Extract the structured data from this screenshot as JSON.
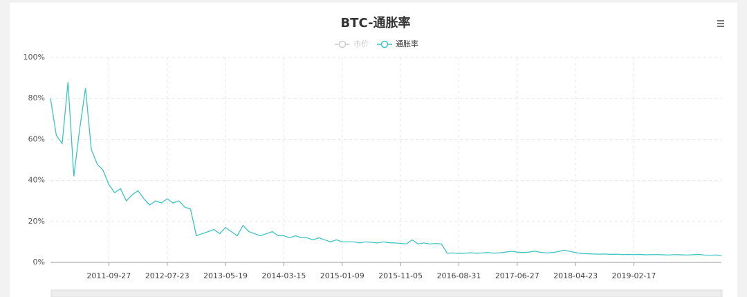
{
  "chart_data": {
    "type": "line",
    "title": "BTC-通胀率",
    "legend": [
      {
        "name": "市价",
        "active": false
      },
      {
        "name": "通胀率",
        "active": true
      }
    ],
    "categories": [
      null,
      null,
      null,
      null,
      null,
      null,
      null,
      null,
      null,
      null,
      "2011-09-27",
      null,
      null,
      null,
      null,
      null,
      null,
      null,
      null,
      null,
      "2012-07-23",
      null,
      null,
      null,
      null,
      null,
      null,
      null,
      null,
      null,
      "2013-05-19",
      null,
      null,
      null,
      null,
      null,
      null,
      null,
      null,
      null,
      "2014-03-15",
      null,
      null,
      null,
      null,
      null,
      null,
      null,
      null,
      null,
      "2015-01-09",
      null,
      null,
      null,
      null,
      null,
      null,
      null,
      null,
      null,
      "2015-11-05",
      null,
      null,
      null,
      null,
      null,
      null,
      null,
      null,
      null,
      "2016-08-31",
      null,
      null,
      null,
      null,
      null,
      null,
      null,
      null,
      null,
      "2017-06-27",
      null,
      null,
      null,
      null,
      null,
      null,
      null,
      null,
      null,
      "2018-04-23",
      null,
      null,
      null,
      null,
      null,
      null,
      null,
      null,
      null,
      "2019-02-17",
      null,
      null,
      null,
      null,
      null,
      null,
      null,
      null,
      null,
      null,
      null,
      null,
      null,
      null,
      null
    ],
    "series": [
      {
        "name": "通胀率",
        "color": "#3cc3c3",
        "values": [
          80,
          62,
          58,
          88,
          42,
          65,
          85,
          55,
          48,
          45,
          38,
          34,
          36,
          30,
          33,
          35,
          31,
          28,
          30,
          29,
          31,
          29,
          30,
          27,
          26,
          13,
          14,
          15,
          16,
          14,
          17,
          15,
          13,
          18,
          15,
          14,
          13,
          14,
          15,
          13,
          13,
          12,
          13,
          12,
          12,
          11,
          12,
          11,
          10,
          11,
          10,
          10,
          10,
          9.5,
          10,
          9.8,
          9.5,
          10,
          9.6,
          9.5,
          9.3,
          9,
          11,
          9,
          9.5,
          9,
          9.2,
          9,
          4.5,
          4.6,
          4.4,
          4.5,
          4.7,
          4.5,
          4.6,
          4.8,
          4.5,
          4.7,
          5.0,
          5.4,
          5.0,
          4.8,
          5.0,
          5.5,
          4.9,
          4.6,
          4.8,
          5.2,
          6.0,
          5.4,
          4.8,
          4.3,
          4.2,
          4.1,
          4.0,
          4.1,
          3.9,
          4.0,
          3.8,
          3.9,
          3.8,
          3.9,
          3.7,
          3.8,
          3.8,
          3.7,
          3.6,
          3.8,
          3.7,
          3.6,
          3.7,
          3.9,
          3.6,
          3.5,
          3.6,
          3.4
        ]
      }
    ],
    "ylim": [
      0,
      100
    ],
    "yticks": [
      {
        "value": 0,
        "label": "0%"
      },
      {
        "value": 20,
        "label": "20%"
      },
      {
        "value": 40,
        "label": "40%"
      },
      {
        "value": 60,
        "label": "60%"
      },
      {
        "value": 80,
        "label": "80%"
      },
      {
        "value": 100,
        "label": "100%"
      }
    ],
    "grid": true
  }
}
